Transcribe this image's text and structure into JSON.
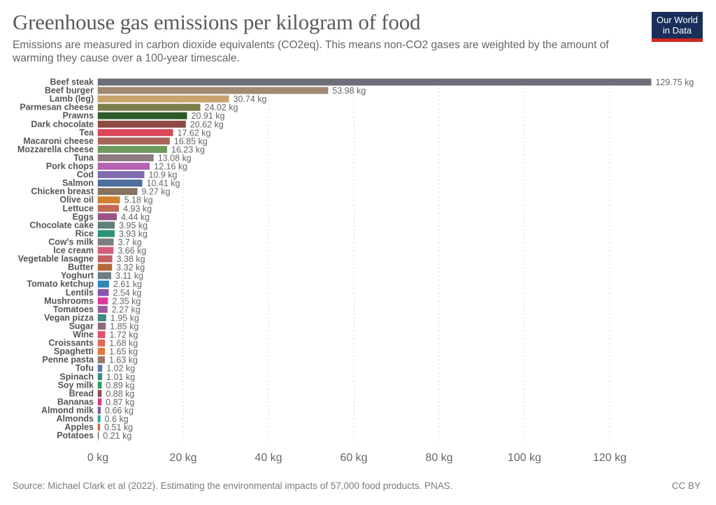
{
  "chart_data": {
    "type": "bar",
    "orientation": "horizontal",
    "title": "Greenhouse gas emissions per kilogram of food",
    "subtitle": "Emissions are measured in carbon dioxide equivalents (CO2eq). This means non-CO2 gases are weighted by the amount of warming they cause over a 100-year timescale.",
    "xlabel": "",
    "ylabel": "",
    "unit": "kg",
    "xlim": [
      0,
      130
    ],
    "x_ticks": [
      0,
      20,
      40,
      60,
      80,
      100,
      120
    ],
    "x_tick_labels": [
      "0 kg",
      "20 kg",
      "40 kg",
      "60 kg",
      "80 kg",
      "100 kg",
      "120 kg"
    ],
    "grid": "vertical dashed",
    "categories": [
      "Beef steak",
      "Beef burger",
      "Lamb (leg)",
      "Parmesan cheese",
      "Prawns",
      "Dark chocolate",
      "Tea",
      "Macaroni cheese",
      "Mozzarella cheese",
      "Tuna",
      "Pork chops",
      "Cod",
      "Salmon",
      "Chicken breast",
      "Olive oil",
      "Lettuce",
      "Eggs",
      "Chocolate cake",
      "Rice",
      "Cow's milk",
      "Ice cream",
      "Vegetable lasagne",
      "Butter",
      "Yoghurt",
      "Tomato ketchup",
      "Lentils",
      "Mushrooms",
      "Tomatoes",
      "Vegan pizza",
      "Sugar",
      "Wine",
      "Croissants",
      "Spaghetti",
      "Penne pasta",
      "Tofu",
      "Spinach",
      "Soy milk",
      "Bread",
      "Bananas",
      "Almond milk",
      "Almonds",
      "Apples",
      "Potatoes"
    ],
    "values": [
      129.75,
      53.98,
      30.74,
      24.02,
      20.91,
      20.62,
      17.62,
      16.85,
      16.23,
      13.08,
      12.16,
      10.9,
      10.41,
      9.27,
      5.18,
      4.93,
      4.44,
      3.95,
      3.93,
      3.7,
      3.66,
      3.38,
      3.32,
      3.11,
      2.61,
      2.54,
      2.35,
      2.27,
      1.95,
      1.85,
      1.72,
      1.68,
      1.65,
      1.63,
      1.02,
      1.01,
      0.89,
      0.88,
      0.87,
      0.66,
      0.6,
      0.51,
      0.21
    ],
    "value_labels": [
      "129.75 kg",
      "53.98 kg",
      "30.74 kg",
      "24.02 kg",
      "20.91 kg",
      "20.62 kg",
      "17.62 kg",
      "16.85 kg",
      "16.23 kg",
      "13.08 kg",
      "12.16 kg",
      "10.9 kg",
      "10.41 kg",
      "9.27 kg",
      "5.18 kg",
      "4.93 kg",
      "4.44 kg",
      "3.95 kg",
      "3.93 kg",
      "3.7 kg",
      "3.66 kg",
      "3.38 kg",
      "3.32 kg",
      "3.11 kg",
      "2.61 kg",
      "2.54 kg",
      "2.35 kg",
      "2.27 kg",
      "1.95 kg",
      "1.85 kg",
      "1.72 kg",
      "1.68 kg",
      "1.65 kg",
      "1.63 kg",
      "1.02 kg",
      "1.01 kg",
      "0.89 kg",
      "0.88 kg",
      "0.87 kg",
      "0.66 kg",
      "0.6 kg",
      "0.51 kg",
      "0.21 kg"
    ],
    "colors": [
      "#6d6e78",
      "#a08a74",
      "#c9a26c",
      "#7b7d4a",
      "#2d5b2a",
      "#8c4a42",
      "#d9475a",
      "#a76558",
      "#6d9a5a",
      "#8f7b7f",
      "#b464b0",
      "#7e6bb0",
      "#4b6e9a",
      "#85725f",
      "#d0812f",
      "#c26a55",
      "#9a5485",
      "#5f7f78",
      "#2d9378",
      "#7b7d7e",
      "#d45c78",
      "#c46060",
      "#b5683a",
      "#6f7d85",
      "#2f87b8",
      "#8757b0",
      "#d63c9a",
      "#9a5c9a",
      "#3e8a80",
      "#8e6a7a",
      "#e0506a",
      "#de6a52",
      "#e0783a",
      "#9a7a70",
      "#5a78b0",
      "#3a8a88",
      "#2e9a60",
      "#8a4a5a",
      "#d43a8a",
      "#7a5aa8",
      "#2aa0a0",
      "#c8683a",
      "#6a6a7a"
    ]
  },
  "header": {
    "title": "Greenhouse gas emissions per kilogram of food",
    "subtitle": "Emissions are measured in carbon dioxide equivalents (CO2eq). This means non-CO2 gases are weighted by the amount of warming they cause over a 100-year timescale.",
    "logo_line1": "Our World",
    "logo_line2": "in Data"
  },
  "footer": {
    "source": "Source: Michael Clark et al (2022). Estimating the environmental impacts of 57,000 food products. PNAS.",
    "license": "CC BY"
  }
}
